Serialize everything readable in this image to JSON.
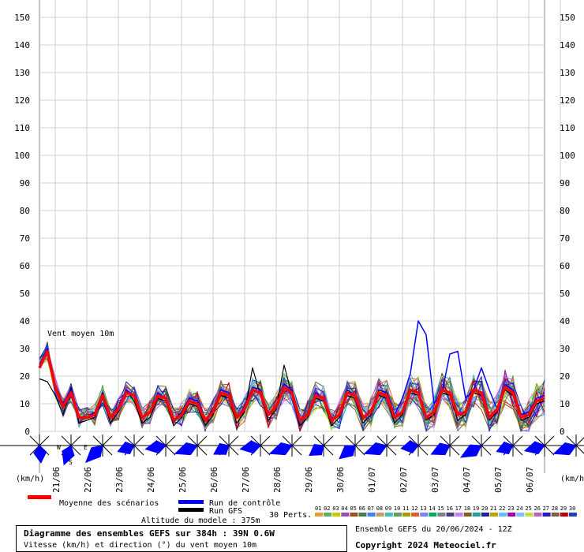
{
  "chart_data": {
    "type": "line",
    "annotation": "Vent moyen 10m",
    "y_unit_left": "(km/h)",
    "y_unit_right": "(km/h)",
    "ylim": [
      0,
      150
    ],
    "yticks": [
      0,
      10,
      20,
      30,
      40,
      50,
      60,
      70,
      80,
      90,
      100,
      110,
      120,
      130,
      140,
      150
    ],
    "x_hours": [
      0,
      384
    ],
    "date_labels": [
      "21/06",
      "22/06",
      "23/06",
      "24/06",
      "25/06",
      "26/06",
      "27/06",
      "28/06",
      "29/06",
      "30/06",
      "01/07",
      "02/07",
      "03/07",
      "04/07",
      "05/07",
      "06/07"
    ],
    "grid": true,
    "mean_series": {
      "name": "Moyenne des scénarios",
      "color": "#ff0000",
      "x": [
        0,
        6,
        12,
        18,
        24,
        30,
        36,
        42,
        48,
        54,
        60,
        66,
        72,
        78,
        84,
        90,
        96,
        102,
        108,
        114,
        120,
        126,
        132,
        138,
        144,
        150,
        156,
        162,
        168,
        174,
        180,
        186,
        192,
        198,
        204,
        210,
        216,
        222,
        228,
        234,
        240,
        246,
        252,
        258,
        264,
        270,
        276,
        282,
        288,
        294,
        300,
        306,
        312,
        318,
        324,
        330,
        336,
        342,
        348,
        354,
        360,
        366,
        372,
        378,
        384
      ],
      "values": [
        23,
        29,
        16,
        9,
        14,
        5,
        5,
        6,
        13,
        5,
        8,
        14,
        13,
        5,
        7,
        13,
        12,
        4,
        6,
        11,
        10,
        4,
        7,
        14,
        13,
        5,
        8,
        15,
        14,
        6,
        9,
        16,
        14,
        4,
        6,
        13,
        12,
        4,
        6,
        14,
        13,
        5,
        7,
        14,
        13,
        5,
        7,
        15,
        14,
        5,
        7,
        15,
        14,
        6,
        7,
        15,
        14,
        5,
        8,
        16,
        14,
        5,
        6,
        11,
        12
      ]
    },
    "control_series": {
      "name": "Run de contrôle",
      "color": "#0000ff",
      "x": [
        0,
        6,
        12,
        18,
        24,
        30,
        36,
        42,
        48,
        54,
        60,
        66,
        72,
        78,
        84,
        90,
        96,
        102,
        108,
        114,
        120,
        126,
        132,
        138,
        144,
        150,
        156,
        162,
        168,
        174,
        180,
        186,
        192,
        198,
        204,
        210,
        216,
        222,
        228,
        234,
        240,
        246,
        252,
        258,
        264,
        270,
        276,
        282,
        288,
        294,
        300,
        306,
        312,
        318,
        324,
        330,
        336,
        342,
        348,
        354,
        360,
        366,
        372,
        378,
        384
      ],
      "values": [
        24,
        30,
        17,
        10,
        15,
        5,
        5,
        7,
        14,
        5,
        9,
        15,
        13,
        5,
        7,
        14,
        12,
        4,
        7,
        12,
        11,
        4,
        8,
        15,
        14,
        5,
        9,
        16,
        15,
        6,
        9,
        17,
        15,
        4,
        6,
        14,
        12,
        4,
        6,
        15,
        13,
        5,
        7,
        15,
        14,
        6,
        12,
        21,
        40,
        35,
        10,
        14,
        28,
        29,
        12,
        15,
        23,
        15,
        8,
        17,
        15,
        6,
        7,
        12,
        13
      ]
    },
    "gfs_series": {
      "name": "Run GFS",
      "color": "#000000",
      "x": [
        0,
        6,
        12,
        18,
        24,
        30,
        36,
        42,
        48,
        54,
        60,
        66,
        72,
        78,
        84,
        90,
        96,
        102,
        108,
        114,
        120,
        126,
        132,
        138,
        144,
        150,
        156,
        162,
        168,
        174,
        180,
        186,
        192,
        198,
        204,
        210,
        216,
        222,
        228,
        234,
        240,
        246,
        252,
        258,
        264,
        270,
        276,
        282,
        288,
        294,
        300,
        306,
        312,
        318,
        324,
        330,
        336,
        342,
        348,
        354,
        360,
        366,
        372,
        378,
        384
      ],
      "values": [
        19,
        18,
        13,
        6,
        16,
        3,
        4,
        5,
        12,
        3,
        7,
        15,
        11,
        3,
        5,
        12,
        11,
        2,
        5,
        10,
        9,
        2,
        6,
        13,
        12,
        3,
        7,
        23,
        13,
        4,
        8,
        24,
        13,
        2,
        5,
        12,
        11,
        2,
        5,
        13,
        12,
        3,
        6,
        13,
        12,
        3,
        6,
        14,
        13,
        4,
        6,
        14,
        13,
        4,
        6,
        14,
        13,
        4,
        7,
        15,
        13,
        4,
        5,
        10,
        11
      ]
    },
    "perturbations_label": "30 Perts.",
    "perturbation_numbers": [
      "01",
      "02",
      "03",
      "04",
      "05",
      "06",
      "07",
      "08",
      "09",
      "10",
      "11",
      "12",
      "13",
      "14",
      "15",
      "16",
      "17",
      "18",
      "19",
      "20",
      "21",
      "22",
      "23",
      "24",
      "25",
      "26",
      "27",
      "28",
      "29",
      "30"
    ],
    "perturbation_colors": [
      "#e8a030",
      "#60b060",
      "#c8c800",
      "#9050c0",
      "#a05020",
      "#408040",
      "#4080ff",
      "#c0a060",
      "#40c0c0",
      "#60a060",
      "#a0a000",
      "#e06020",
      "#8080ff",
      "#00b060",
      "#808080",
      "#404080",
      "#c080ff",
      "#806020",
      "#20a0a0",
      "#2020a0",
      "#c0a000",
      "#60c0ff",
      "#a000a0",
      "#80c0ff",
      "#c0e040",
      "#c060c0",
      "#2020c0",
      "#806040",
      "#c00000",
      "#2040c0"
    ],
    "wind_directions_deg": [
      175,
      200,
      225,
      250,
      260,
      250,
      240,
      260,
      250,
      235,
      230,
      250,
      260,
      245,
      240,
      250,
      255,
      250,
      240,
      250
    ],
    "direction_labels": {
      "west": "W",
      "east": "E",
      "south": "S"
    }
  },
  "legend": {
    "mean_label": "Moyenne des scénarios",
    "control_label": "Run de contrôle",
    "gfs_label": "Run GFS"
  },
  "footer": {
    "altitude": "Altitude du modele : 375m",
    "title": "Diagramme des ensembles GEFS sur 384h : 39N 0.6W",
    "subtitle": "Vitesse (km/h) et direction (°) du vent moyen 10m",
    "run_info": "Ensemble GEFS du 20/06/2024 - 12Z",
    "copyright": "Copyright 2024 Meteociel.fr"
  }
}
